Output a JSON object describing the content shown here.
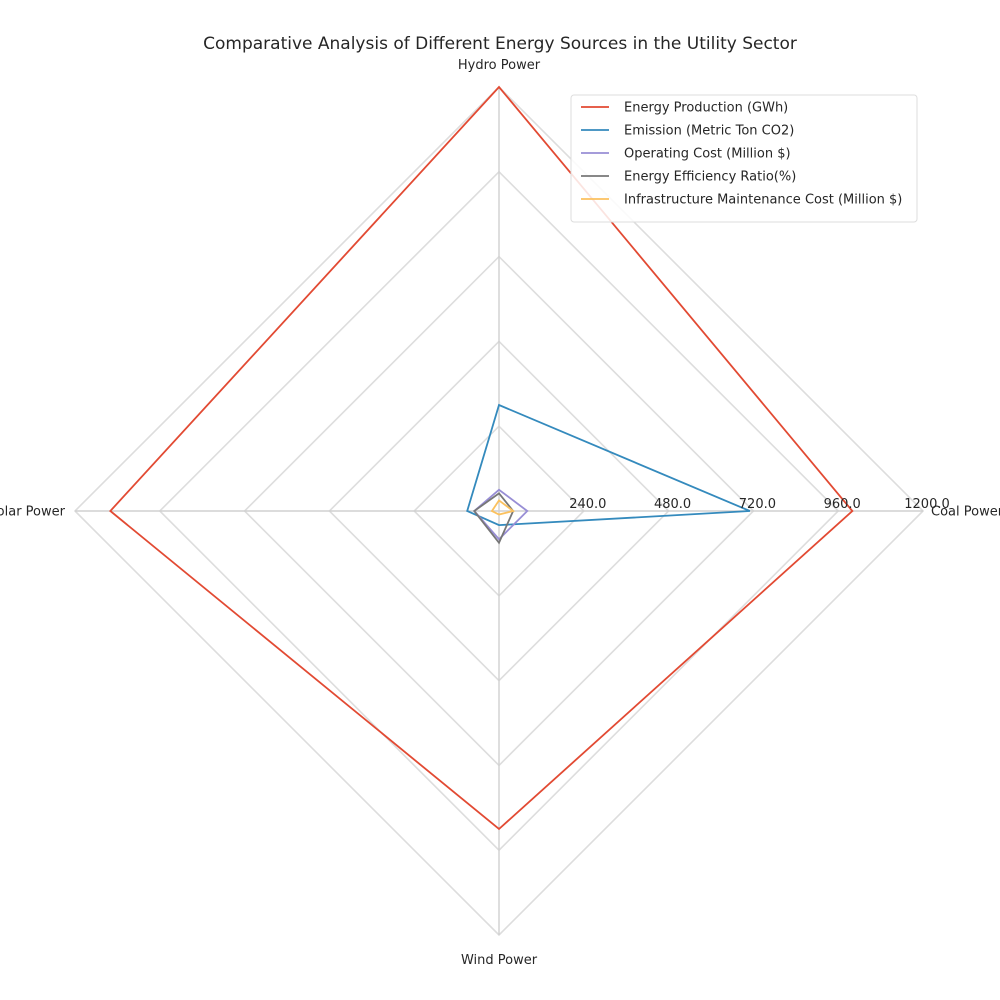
{
  "chart_data": {
    "type": "radar",
    "title": "Comparative Analysis of Different Energy Sources in the Utility Sector",
    "categories": [
      "Coal Power",
      "Hydro Power",
      "Solar Power",
      "Wind Power"
    ],
    "rlim": [
      0,
      1200
    ],
    "ticks": [
      240,
      480,
      720,
      960,
      1200
    ],
    "tick_labels": [
      "240.0",
      "480.0",
      "720.0",
      "960.0",
      "1200.0"
    ],
    "grid": true,
    "legend_position": "top-right",
    "series": [
      {
        "name": "Energy Production (GWh)",
        "color": "#E24A33",
        "values": [
          1000,
          1200,
          1100,
          900
        ]
      },
      {
        "name": "Emission (Metric Ton CO2)",
        "color": "#348ABD",
        "values": [
          710,
          300,
          90,
          40
        ]
      },
      {
        "name": "Operating Cost (Million $)",
        "color": "#988ED5",
        "values": [
          80,
          60,
          70,
          80
        ]
      },
      {
        "name": "Energy Efficiency Ratio(%)",
        "color": "#777777",
        "values": [
          40,
          50,
          70,
          90
        ]
      },
      {
        "name": "Infrastructure Maintenance Cost (Million $)",
        "color": "#FBC15E",
        "values": [
          40,
          30,
          20,
          10
        ]
      }
    ]
  }
}
